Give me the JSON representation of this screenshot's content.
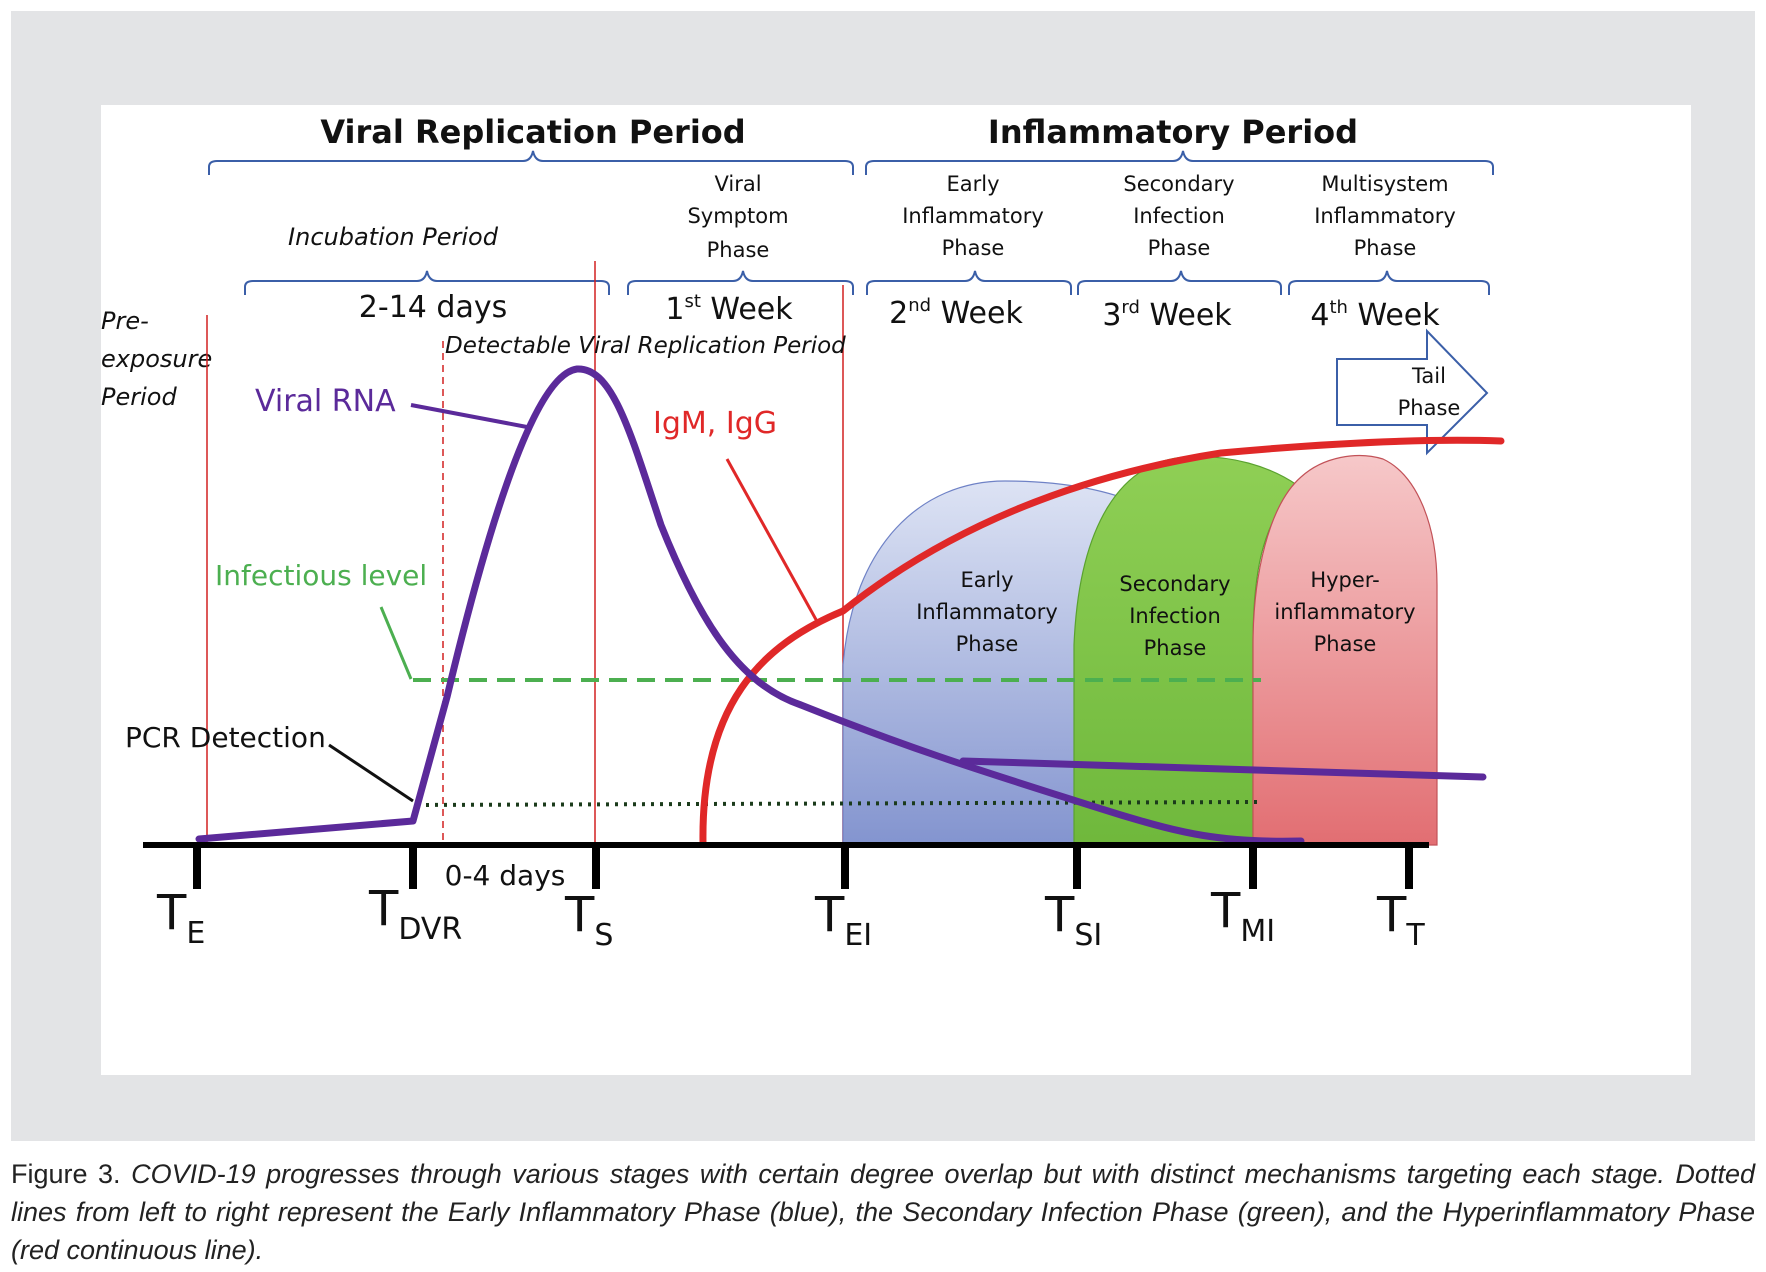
{
  "periods": {
    "viral_replication": "Viral Replication Period",
    "inflammatory": "Inflammatory Period"
  },
  "phases": {
    "incubation": "Incubation Period",
    "viral_symptom": [
      "Viral",
      "Symptom",
      "Phase"
    ],
    "early_inflammatory": [
      "Early",
      "Inflammatory",
      "Phase"
    ],
    "secondary_infection": [
      "Secondary",
      "Infection",
      "Phase"
    ],
    "multisystem": [
      "Multisystem",
      "Inflammatory",
      "Phase"
    ]
  },
  "durations": {
    "incubation": "2-14 days",
    "week1": {
      "num": "1",
      "sup": "st",
      "word": " Week"
    },
    "week2": {
      "num": "2",
      "sup": "nd",
      "word": " Week"
    },
    "week3": {
      "num": "3",
      "sup": "rd",
      "word": " Week"
    },
    "week4": {
      "num": "4",
      "sup": "th",
      "word": " Week"
    }
  },
  "labels": {
    "pre_exposure": [
      "Pre-",
      "exposure",
      "Period"
    ],
    "detectable": "Detectable Viral Replication Period",
    "viral_rna": "Viral RNA",
    "igm_igg": "IgM, IgG",
    "infectious_level": "Infectious level",
    "pcr_detection": "PCR Detection",
    "tail_phase": [
      "Tail",
      "Phase"
    ],
    "zero_four_days": "0-4 days"
  },
  "areas": {
    "early": [
      "Early",
      "Inflammatory",
      "Phase"
    ],
    "secondary": [
      "Secondary",
      "Infection",
      "Phase"
    ],
    "hyper": [
      "Hyper-",
      "inflammatory",
      "Phase"
    ]
  },
  "timepoints": [
    {
      "main": "T",
      "sub": "E"
    },
    {
      "main": "T",
      "sub": "DVR"
    },
    {
      "main": "T",
      "sub": "S"
    },
    {
      "main": "T",
      "sub": "EI"
    },
    {
      "main": "T",
      "sub": "SI"
    },
    {
      "main": "T",
      "sub": "MI"
    },
    {
      "main": "T",
      "sub": "T"
    }
  ],
  "caption": {
    "lead": "Figure 3.",
    "text": "COVID-19 progresses through various stages with certain degree overlap but with distinct mechanisms targeting each stage. Dotted lines from left to right represent the Early Inflammatory Phase (blue), the Secondary Infection Phase (green), and the Hyperinflammatory Phase (red continuous line)."
  },
  "colors": {
    "viral_rna": "#5b2a9a",
    "igm": "#e03030",
    "infectious": "#4caf50",
    "early_fill": "#8ea0d6",
    "secondary_fill": "#7cc24a",
    "hyper_fill": "#ec8d8f",
    "brace": "#3b5fa8",
    "divider": "#d22020"
  }
}
